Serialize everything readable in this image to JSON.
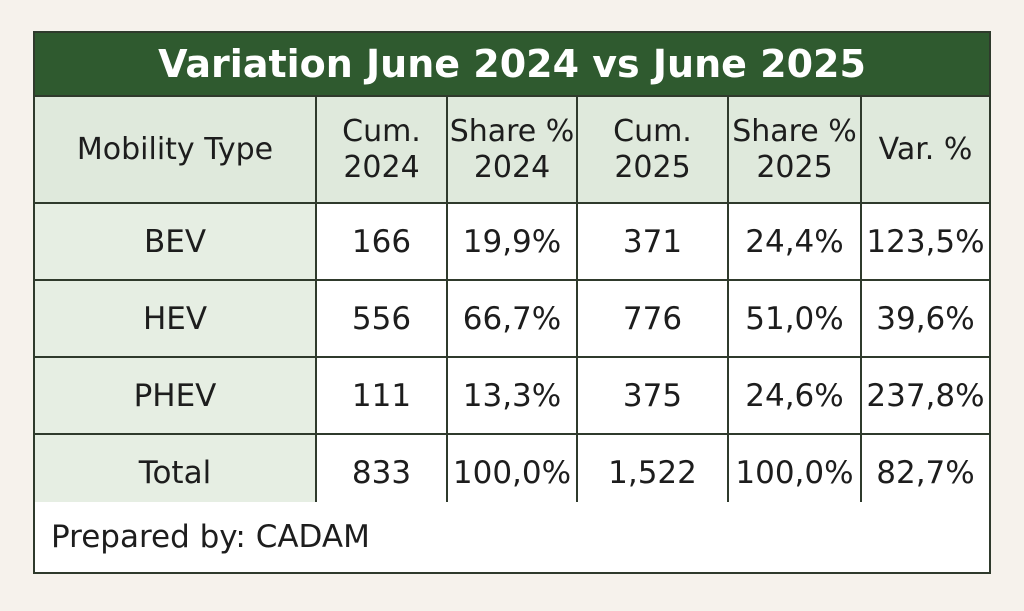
{
  "chart_data": {
    "type": "table",
    "title": "Variation June 2024 vs June 2025",
    "columns": [
      "Mobility Type",
      "Cum. 2024",
      "Share % 2024",
      "Cum. 2025",
      "Share % 2025",
      "Var. %"
    ],
    "rows": [
      [
        "BEV",
        "166",
        "19,9%",
        "371",
        "24,4%",
        "123,5%"
      ],
      [
        "HEV",
        "556",
        "66,7%",
        "776",
        "51,0%",
        "39,6%"
      ],
      [
        "PHEV",
        "111",
        "13,3%",
        "375",
        "24,6%",
        "237,8%"
      ],
      [
        "Total",
        "833",
        "100,0%",
        "1,522",
        "100,0%",
        "82,7%"
      ]
    ],
    "footer": "Prepared by: CADAM"
  },
  "colors": {
    "title_background": "#2f5a2f",
    "header_background": "#dfe9dc",
    "label_column_background": "#e6eee3",
    "border": "#2f3a2c"
  }
}
